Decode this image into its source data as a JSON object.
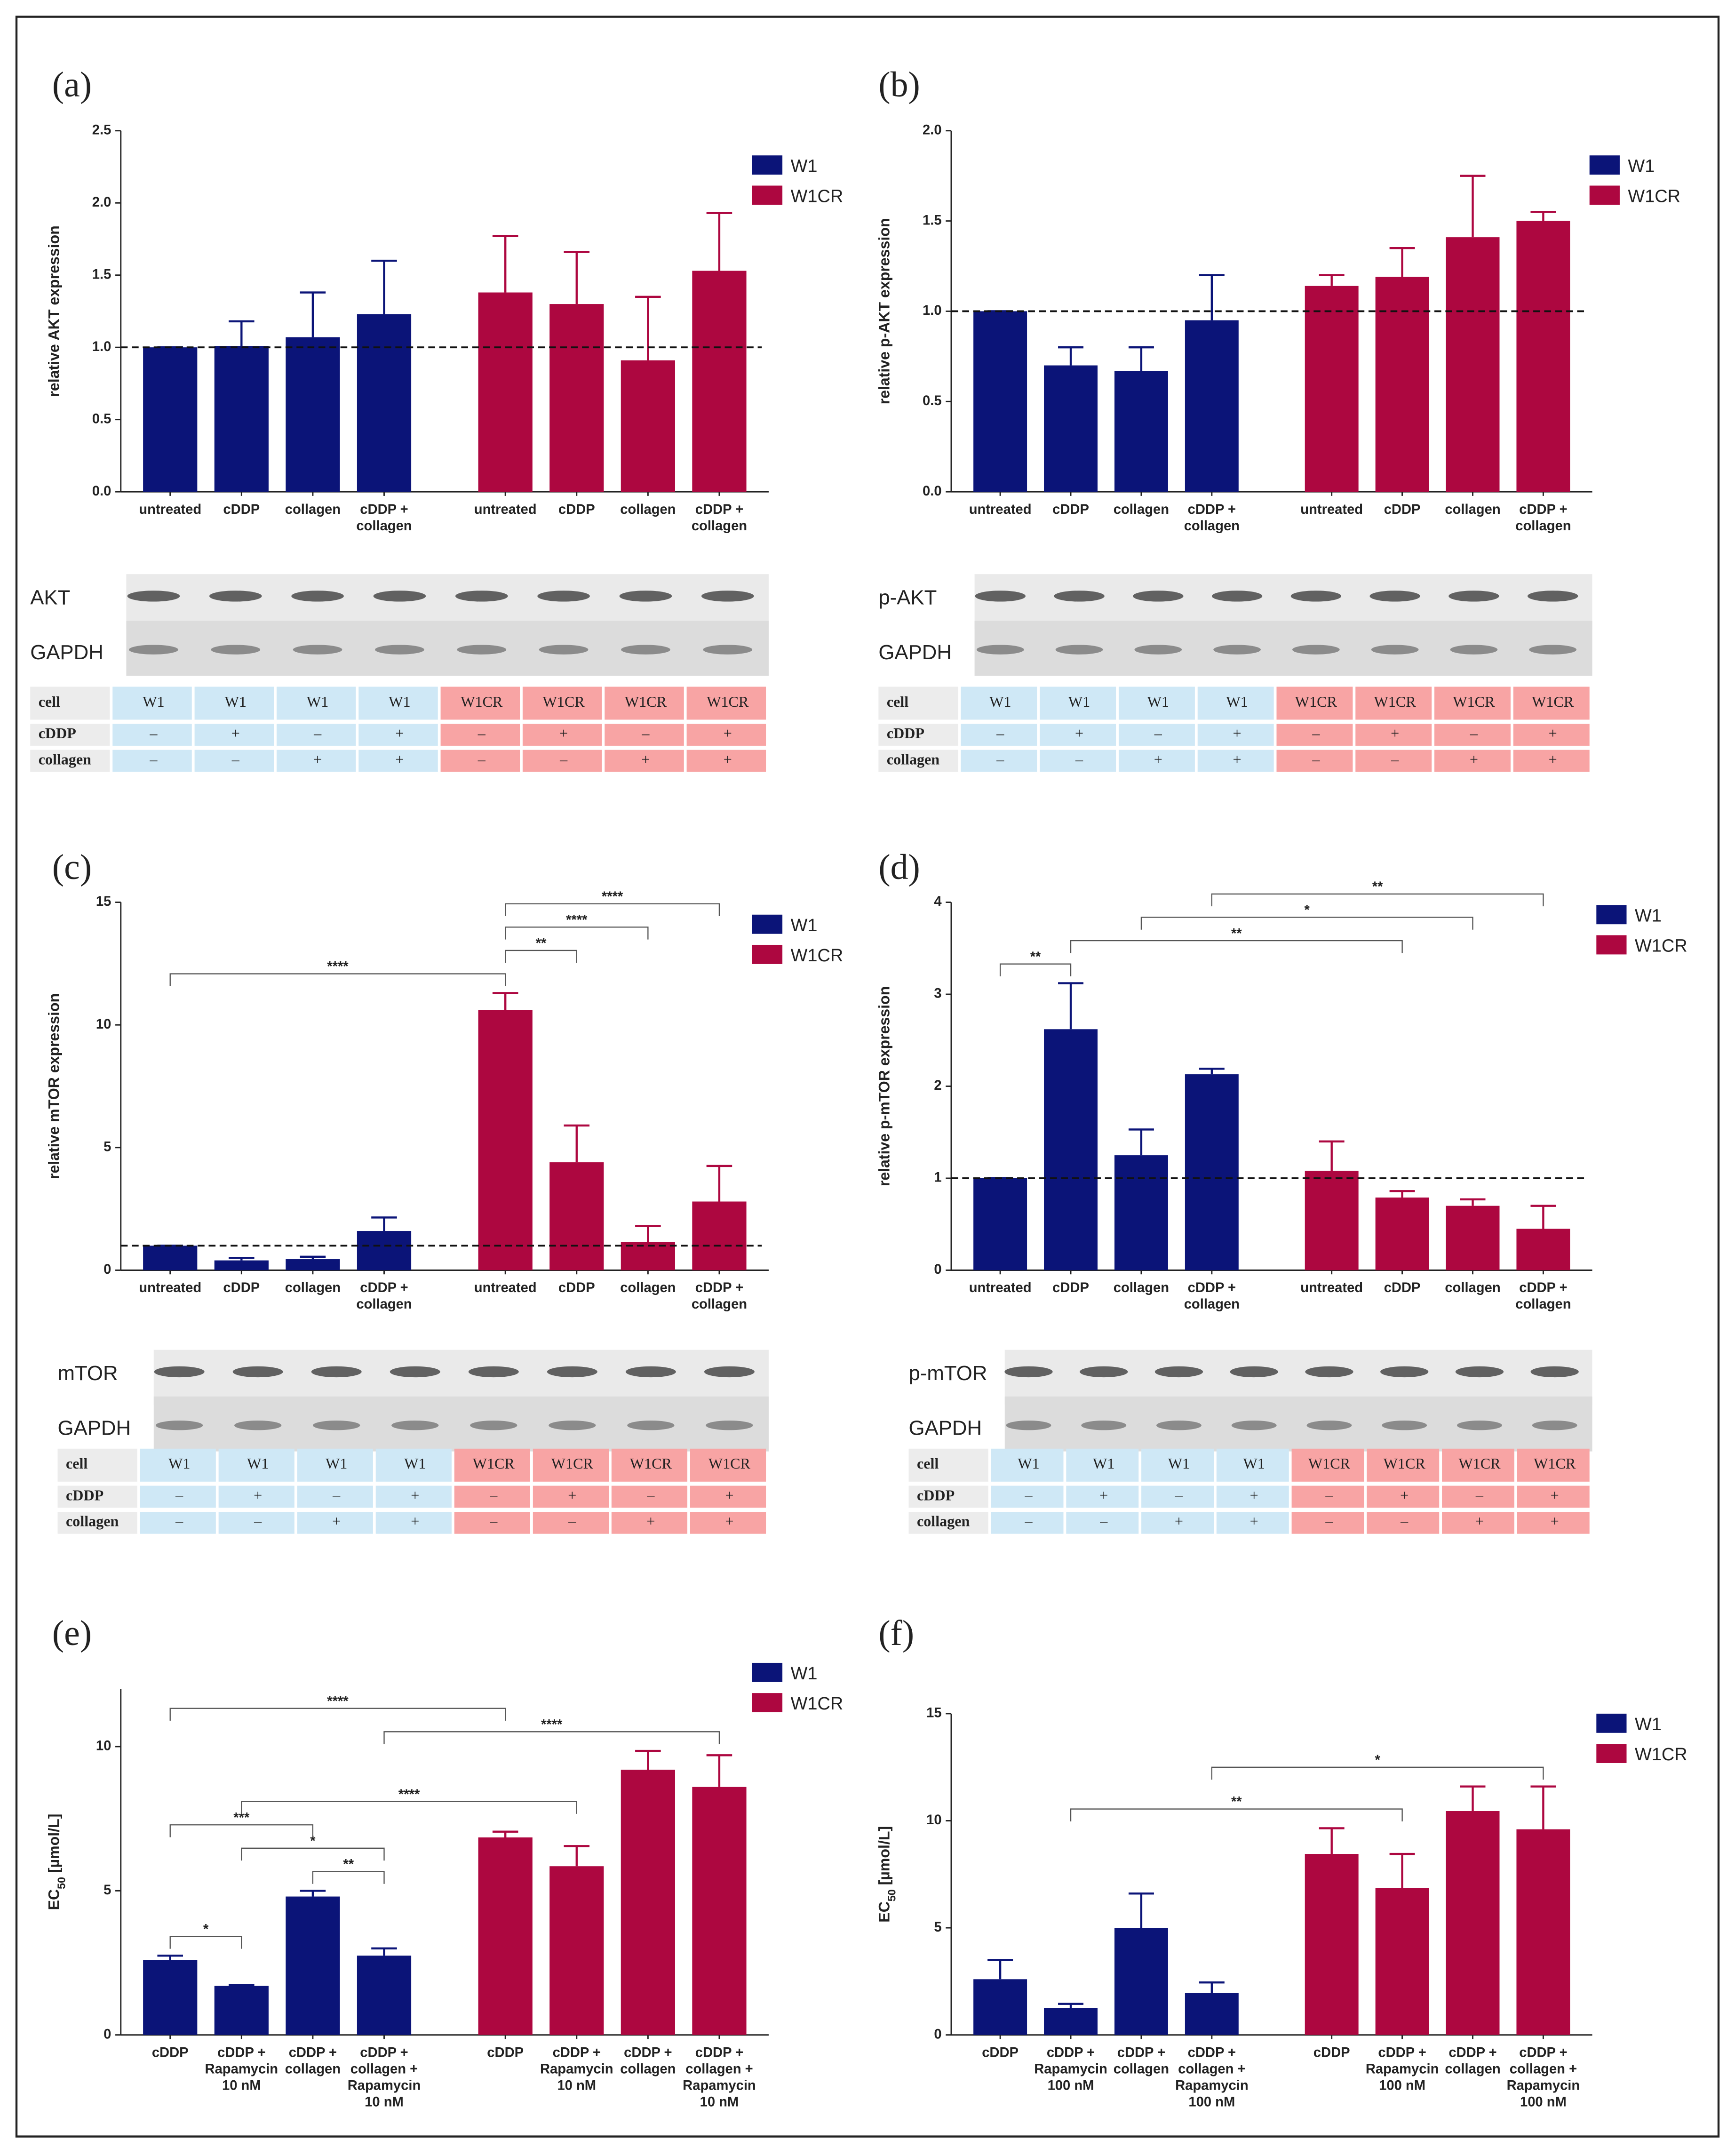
{
  "chart_data": [
    {
      "type": "bar",
      "panel": "(a)",
      "y_label": [
        "relative AKT expression"
      ],
      "categories": [
        "untreated",
        "cDDP",
        "collagen",
        "cDDP +\ncollagen",
        "untreated",
        "cDDP",
        "collagen",
        "cDDP +\ncollagen"
      ],
      "series": [
        {
          "name": "W1",
          "color": "#0b1478",
          "values": [
            1.0,
            1.01,
            1.07,
            1.23,
            null,
            null,
            null,
            null
          ],
          "errors": [
            0,
            0.17,
            0.31,
            0.37,
            null,
            null,
            null,
            null
          ]
        },
        {
          "name": "W1CR",
          "color": "#ad0740",
          "values": [
            null,
            null,
            null,
            null,
            1.38,
            1.3,
            0.91,
            1.53
          ],
          "errors": [
            null,
            null,
            null,
            null,
            0.39,
            0.36,
            0.44,
            0.4
          ]
        }
      ],
      "ylim": [
        0,
        2.5
      ],
      "yticks": [
        {
          "value": 0,
          "label": "0.0"
        },
        {
          "value": 0.5,
          "label": "0.5"
        },
        {
          "value": 1,
          "label": "1.0"
        },
        {
          "value": 1.5,
          "label": "1.5"
        },
        {
          "value": 2,
          "label": "2.0"
        },
        {
          "value": 2.5,
          "label": "2.5"
        }
      ],
      "reference_line": 1,
      "brackets": [],
      "blot": {
        "bands": [
          "AKT",
          "GAPDH"
        ],
        "row_labels": [
          "cell",
          "cDDP",
          "collagen"
        ],
        "rows": [
          [
            "W1",
            "W1",
            "W1",
            "W1",
            "W1CR",
            "W1CR",
            "W1CR",
            "W1CR"
          ],
          [
            "–",
            "+",
            "–",
            "+",
            "–",
            "+",
            "–",
            "+"
          ],
          [
            "–",
            "–",
            "+",
            "+",
            "–",
            "–",
            "+",
            "+"
          ]
        ]
      }
    },
    {
      "type": "bar",
      "panel": "(b)",
      "y_label": [
        "relative p-AKT expression"
      ],
      "categories": [
        "untreated",
        "cDDP",
        "collagen",
        "cDDP +\ncollagen",
        "untreated",
        "cDDP",
        "collagen",
        "cDDP +\ncollagen"
      ],
      "series": [
        {
          "name": "W1",
          "color": "#0b1478",
          "values": [
            1.0,
            0.7,
            0.67,
            0.95,
            null,
            null,
            null,
            null
          ],
          "errors": [
            0,
            0.1,
            0.13,
            0.25,
            null,
            null,
            null,
            null
          ]
        },
        {
          "name": "W1CR",
          "color": "#ad0740",
          "values": [
            null,
            null,
            null,
            null,
            1.14,
            1.19,
            1.41,
            1.5
          ],
          "errors": [
            null,
            null,
            null,
            null,
            0.06,
            0.16,
            0.34,
            0.05
          ]
        }
      ],
      "ylim": [
        0,
        2
      ],
      "yticks": [
        {
          "value": 0,
          "label": "0.0"
        },
        {
          "value": 0.5,
          "label": "0.5"
        },
        {
          "value": 1,
          "label": "1.0"
        },
        {
          "value": 1.5,
          "label": "1.5"
        },
        {
          "value": 2,
          "label": "2.0"
        }
      ],
      "reference_line": 1,
      "brackets": [],
      "blot": {
        "bands": [
          "p-AKT",
          "GAPDH"
        ],
        "row_labels": [
          "cell",
          "cDDP",
          "collagen"
        ],
        "rows": [
          [
            "W1",
            "W1",
            "W1",
            "W1",
            "W1CR",
            "W1CR",
            "W1CR",
            "W1CR"
          ],
          [
            "–",
            "+",
            "–",
            "+",
            "–",
            "+",
            "–",
            "+"
          ],
          [
            "–",
            "–",
            "+",
            "+",
            "–",
            "–",
            "+",
            "+"
          ]
        ]
      }
    },
    {
      "type": "bar",
      "panel": "(c)",
      "y_label": [
        "relative mTOR expression"
      ],
      "categories": [
        "untreated",
        "cDDP",
        "collagen",
        "cDDP +\ncollagen",
        "untreated",
        "cDDP",
        "collagen",
        "cDDP +\ncollagen"
      ],
      "series": [
        {
          "name": "W1",
          "color": "#0b1478",
          "values": [
            1.0,
            0.4,
            0.45,
            1.6,
            null,
            null,
            null,
            null
          ],
          "errors": [
            0,
            0.1,
            0.1,
            0.55,
            null,
            null,
            null,
            null
          ]
        },
        {
          "name": "W1CR",
          "color": "#ad0740",
          "values": [
            null,
            null,
            null,
            null,
            10.6,
            4.4,
            1.15,
            2.8
          ],
          "errors": [
            null,
            null,
            null,
            null,
            0.7,
            1.5,
            0.65,
            1.45
          ]
        }
      ],
      "ylim": [
        0,
        15
      ],
      "yticks": [
        0,
        5,
        10,
        15
      ],
      "reference_line": 1,
      "brackets": [
        {
          "from": 0,
          "to": 4,
          "label": "****"
        },
        {
          "from": 4,
          "to": 5,
          "label": "**"
        },
        {
          "from": 4,
          "to": 6,
          "label": "****"
        },
        {
          "from": 4,
          "to": 7,
          "label": "****"
        }
      ],
      "blot": {
        "bands": [
          "mTOR",
          "GAPDH"
        ],
        "row_labels": [
          "cell",
          "cDDP",
          "collagen"
        ],
        "rows": [
          [
            "W1",
            "W1",
            "W1",
            "W1",
            "W1CR",
            "W1CR",
            "W1CR",
            "W1CR"
          ],
          [
            "–",
            "+",
            "–",
            "+",
            "–",
            "+",
            "–",
            "+"
          ],
          [
            "–",
            "–",
            "+",
            "+",
            "–",
            "–",
            "+",
            "+"
          ]
        ]
      }
    },
    {
      "type": "bar",
      "panel": "(d)",
      "y_label": [
        "relative p-mTOR expression"
      ],
      "categories": [
        "untreated",
        "cDDP",
        "collagen",
        "cDDP +\ncollagen",
        "untreated",
        "cDDP",
        "collagen",
        "cDDP +\ncollagen"
      ],
      "series": [
        {
          "name": "W1",
          "color": "#0b1478",
          "values": [
            1.0,
            2.62,
            1.25,
            2.13,
            null,
            null,
            null,
            null
          ],
          "errors": [
            0,
            0.5,
            0.28,
            0.06,
            null,
            null,
            null,
            null
          ]
        },
        {
          "name": "W1CR",
          "color": "#ad0740",
          "values": [
            null,
            null,
            null,
            null,
            1.08,
            0.79,
            0.7,
            0.45
          ],
          "errors": [
            null,
            null,
            null,
            null,
            0.32,
            0.07,
            0.07,
            0.25
          ]
        }
      ],
      "ylim": [
        0,
        4
      ],
      "yticks": [
        0,
        1,
        2,
        3,
        4
      ],
      "reference_line": 1,
      "brackets": [
        {
          "from": 0,
          "to": 1,
          "label": "**"
        },
        {
          "from": 1,
          "to": 5,
          "label": "**"
        },
        {
          "from": 2,
          "to": 6,
          "label": "*"
        },
        {
          "from": 3,
          "to": 7,
          "label": "**"
        }
      ],
      "blot": {
        "bands": [
          "p-mTOR",
          "GAPDH"
        ],
        "row_labels": [
          "cell",
          "cDDP",
          "collagen"
        ],
        "rows": [
          [
            "W1",
            "W1",
            "W1",
            "W1",
            "W1CR",
            "W1CR",
            "W1CR",
            "W1CR"
          ],
          [
            "–",
            "+",
            "–",
            "+",
            "–",
            "+",
            "–",
            "+"
          ],
          [
            "–",
            "–",
            "+",
            "+",
            "–",
            "–",
            "+",
            "+"
          ]
        ]
      }
    },
    {
      "type": "bar",
      "panel": "(e)",
      "y_label": [
        "EC",
        "50",
        " [µmol/L]"
      ],
      "categories": [
        "cDDP",
        "cDDP +\nRapamycin\n10 nM",
        "cDDP +\ncollagen",
        "cDDP +\ncollagen +\nRapamycin\n10 nM",
        "cDDP",
        "cDDP +\nRapamycin\n10 nM",
        "cDDP +\ncollagen",
        "cDDP +\ncollagen +\nRapamycin\n10 nM"
      ],
      "series": [
        {
          "name": "W1",
          "color": "#0b1478",
          "values": [
            2.6,
            1.7,
            4.8,
            2.75,
            null,
            null,
            null,
            null
          ],
          "errors": [
            0.15,
            0.03,
            0.2,
            0.25,
            null,
            null,
            null,
            null
          ]
        },
        {
          "name": "W1CR",
          "color": "#ad0740",
          "values": [
            null,
            null,
            null,
            null,
            6.85,
            5.85,
            9.2,
            8.6
          ],
          "errors": [
            null,
            null,
            null,
            null,
            0.2,
            0.7,
            0.65,
            1.1
          ]
        }
      ],
      "ylim": [
        0,
        12
      ],
      "yticks": [
        0,
        5,
        10
      ],
      "brackets": [
        {
          "from": 0,
          "to": 1,
          "label": "*"
        },
        {
          "from": 2,
          "to": 3,
          "label": "**"
        },
        {
          "from": 1,
          "to": 3,
          "label": "*"
        },
        {
          "from": 0,
          "to": 2,
          "label": "***"
        },
        {
          "from": 1,
          "to": 5,
          "label": "****"
        },
        {
          "from": 3,
          "to": 7,
          "label": "****"
        },
        {
          "from": 0,
          "to": 4,
          "label": "****"
        }
      ]
    },
    {
      "type": "bar",
      "panel": "(f)",
      "y_label": [
        "EC",
        "50",
        " [µmol/L]"
      ],
      "categories": [
        "cDDP",
        "cDDP +\nRapamycin\n100 nM",
        "cDDP +\ncollagen",
        "cDDP +\ncollagen +\nRapamycin\n100 nM",
        "cDDP",
        "cDDP +\nRapamycin\n100 nM",
        "cDDP +\ncollagen",
        "cDDP +\ncollagen +\nRapamycin\n100 nM"
      ],
      "series": [
        {
          "name": "W1",
          "color": "#0b1478",
          "values": [
            2.6,
            1.25,
            5.0,
            1.95,
            null,
            null,
            null,
            null
          ],
          "errors": [
            0.9,
            0.2,
            1.6,
            0.5,
            null,
            null,
            null,
            null
          ]
        },
        {
          "name": "W1CR",
          "color": "#ad0740",
          "values": [
            null,
            null,
            null,
            null,
            8.45,
            6.85,
            10.45,
            9.6
          ],
          "errors": [
            null,
            null,
            null,
            null,
            1.2,
            1.6,
            1.15,
            2.0
          ]
        }
      ],
      "ylim": [
        0,
        15
      ],
      "yticks": [
        0,
        5,
        10,
        15
      ],
      "brackets": [
        {
          "from": 1,
          "to": 5,
          "label": "**"
        },
        {
          "from": 3,
          "to": 7,
          "label": "*"
        }
      ]
    }
  ]
}
